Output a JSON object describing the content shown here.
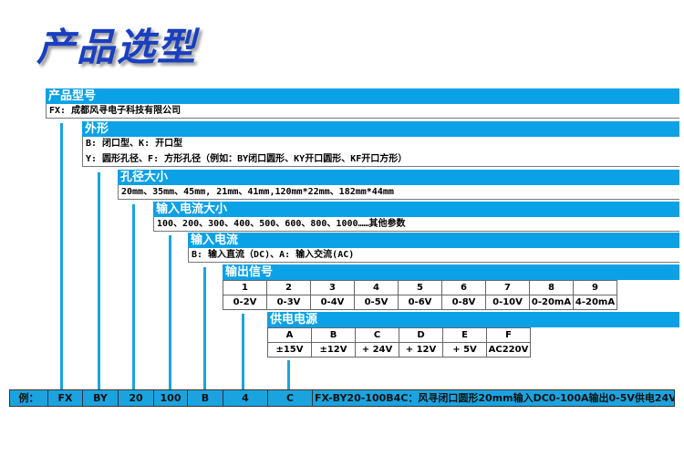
{
  "title": "产品选型",
  "sections": [
    {
      "header": "产品型号",
      "lines": [
        "FX: 成都风寻电子科技有限公司"
      ]
    },
    {
      "header": "外形",
      "lines": [
        "B: 闭口型、K: 开口型",
        "Y: 圆形孔径、F: 方形孔径（例如：BY闭口圆形、KY开口圆形、KF开口方形）"
      ]
    },
    {
      "header": "孔径大小",
      "lines": [
        "20mm、35mm、45mm, 21mm、41mm,120mm*22mm、182mm*44mm"
      ]
    },
    {
      "header": "输入电流大小",
      "lines": [
        "100、200、300、400、500、600、800、1000……其他参数"
      ]
    },
    {
      "header": "输入电流",
      "lines": [
        "B: 输入直流（DC)、A: 输入交流(AC)"
      ]
    }
  ],
  "output_signal": {
    "header": "输出信号",
    "codes": [
      "1",
      "2",
      "3",
      "4",
      "5",
      "6",
      "7",
      "8",
      "9"
    ],
    "values": [
      "0-2V",
      "0-3V",
      "0-4V",
      "0-5V",
      "0-6V",
      "0-8V",
      "0-10V",
      "0-20mA",
      "4-20mA"
    ]
  },
  "power_supply": {
    "header": "供电电源",
    "codes": [
      "A",
      "B",
      "C",
      "D",
      "E",
      "F"
    ],
    "values": [
      "±15V",
      "±12V",
      "+ 24V",
      "+ 12V",
      "+ 5V",
      "AC220V"
    ]
  },
  "example": {
    "label": "例：",
    "parts": [
      "FX",
      "BY",
      "20",
      "100",
      "B",
      "4",
      "C"
    ],
    "description": "FX-BY20-100B4C：风寻闭口圆形20mm输入DC0-100A输出0-5V供电24V"
  },
  "colors": {
    "header": "#0aa1e6",
    "title": "#1a3fbf"
  }
}
